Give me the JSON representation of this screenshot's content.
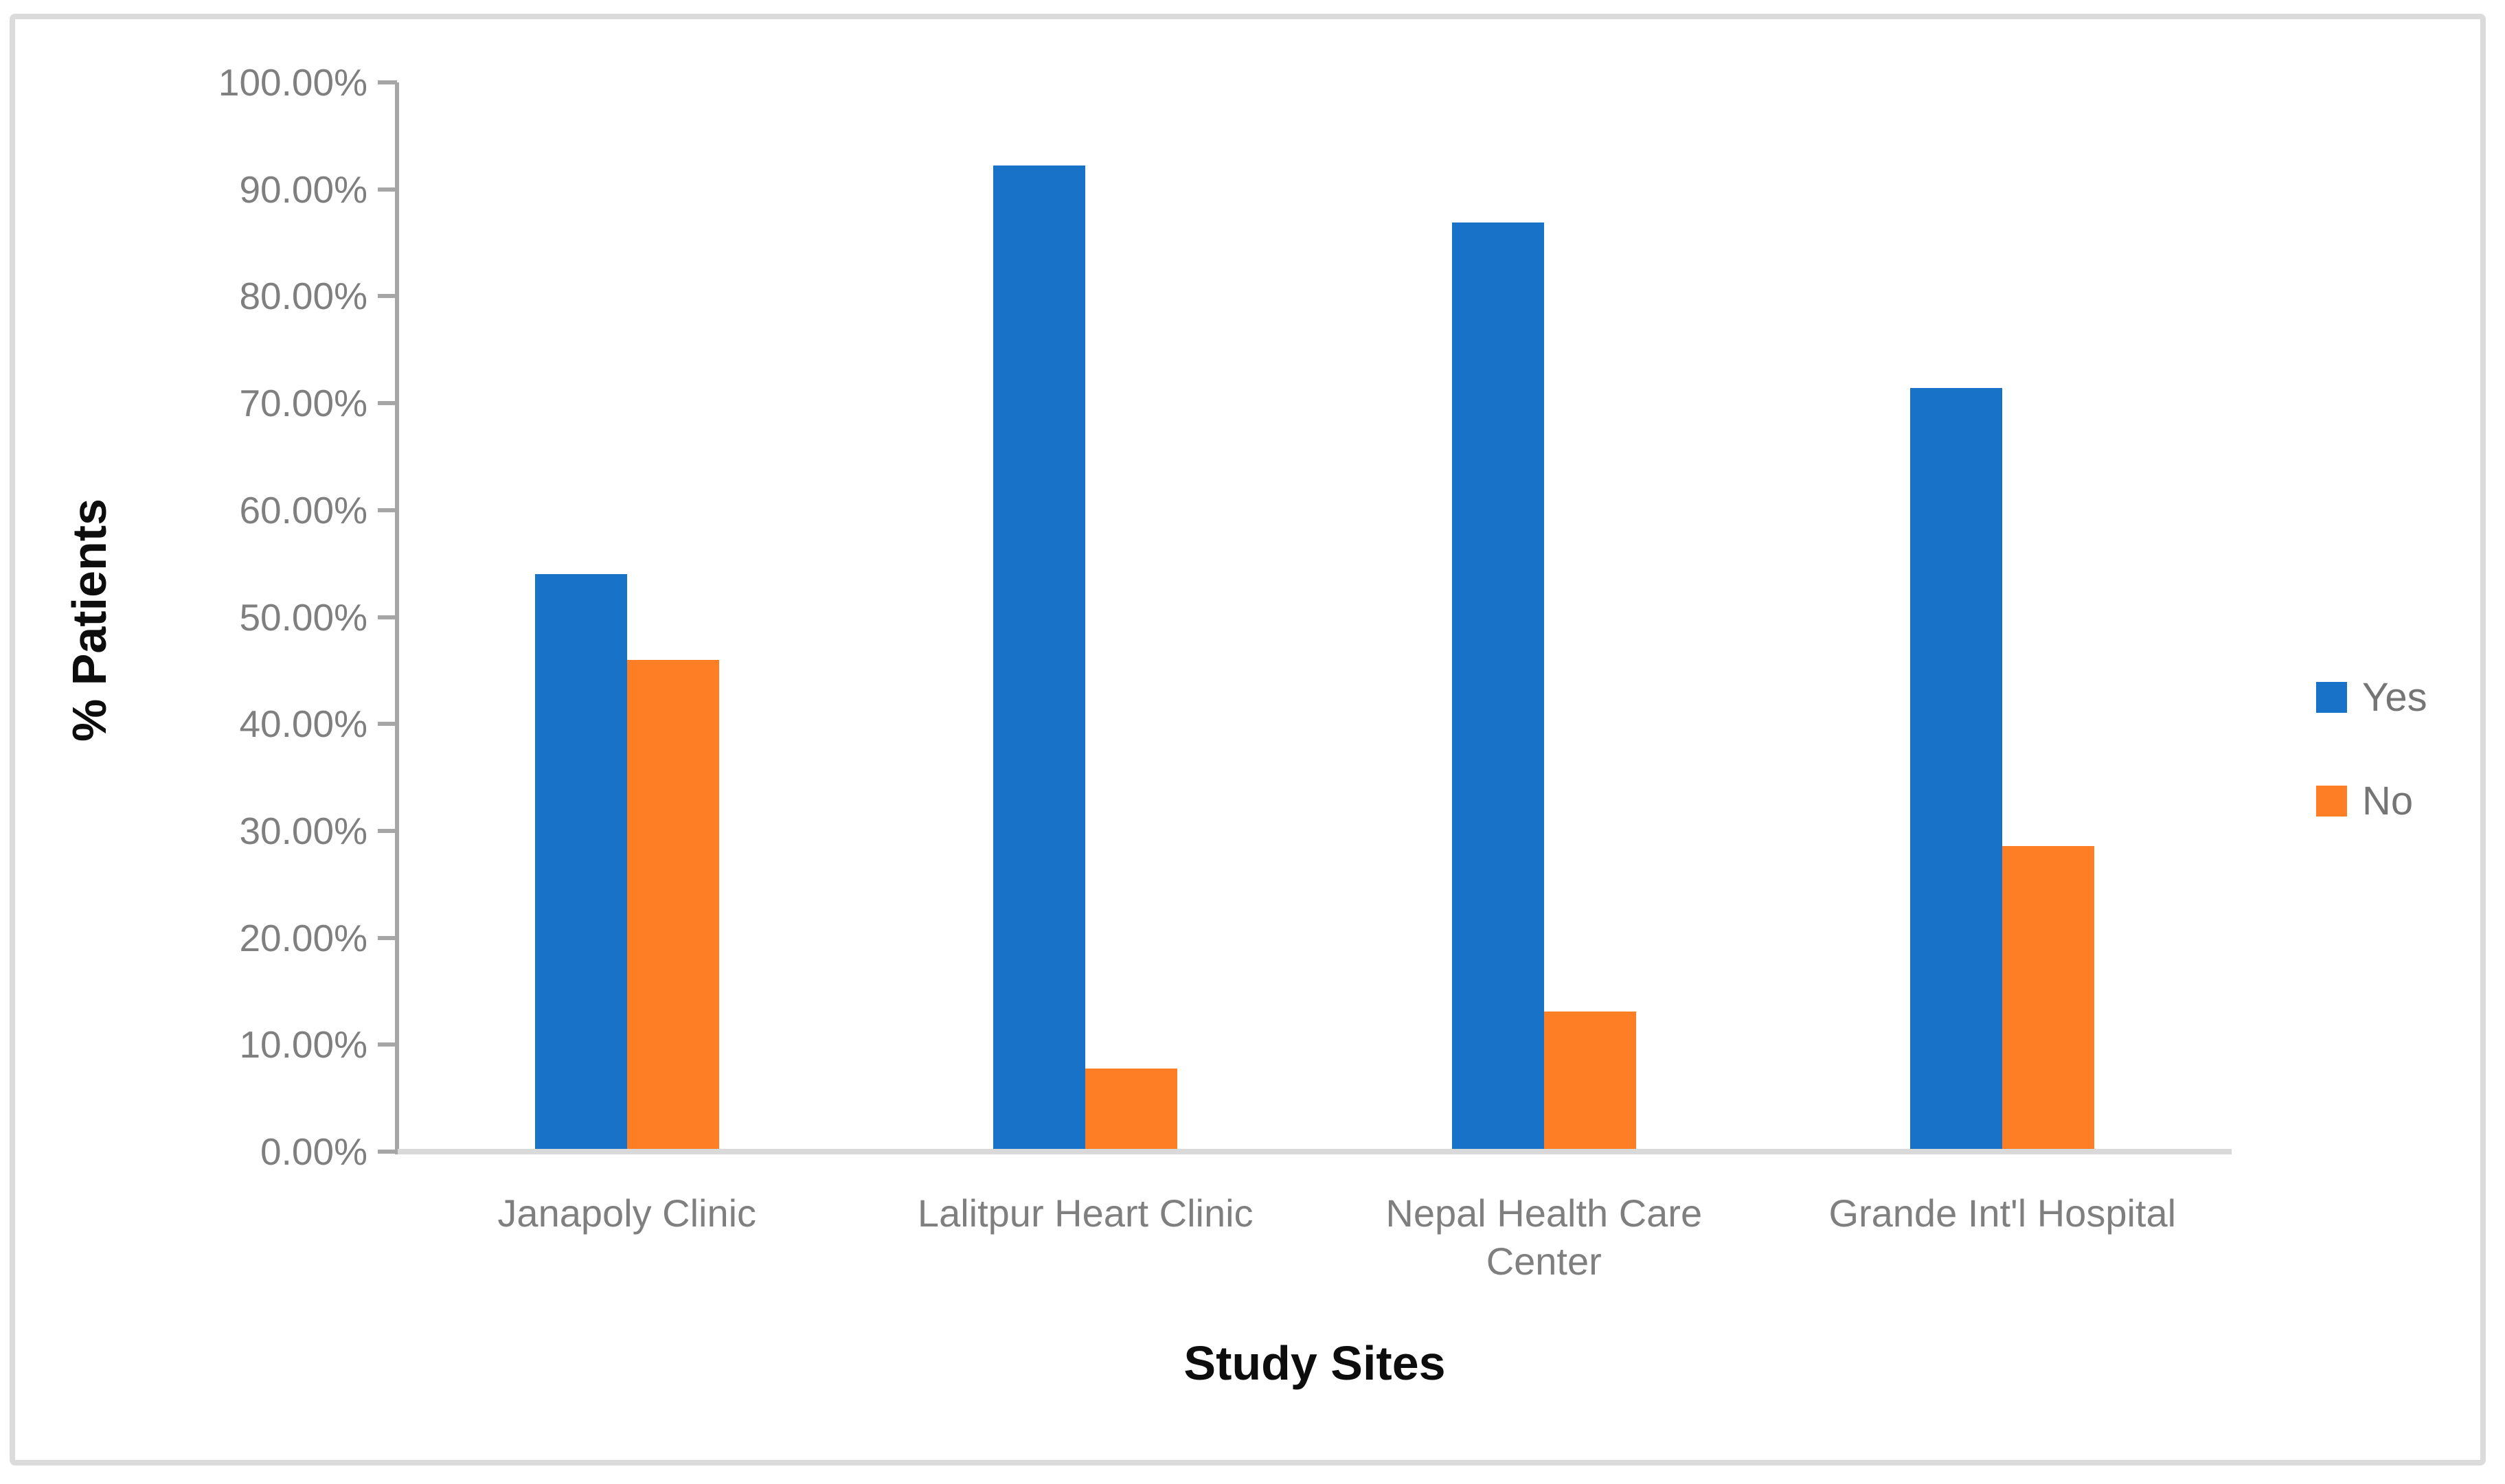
{
  "figure": {
    "background_color": "#ffffff",
    "border_color": "#dbdbdb"
  },
  "axis_style": {
    "axis_line_color": "#a6a6a6",
    "baseline_color": "#d9d9d9",
    "tick_label_color": "#7f7f7f",
    "title_color": "#0d0d0d"
  },
  "legend": {
    "position": "right",
    "items": [
      {
        "label": "Yes",
        "color": "#1873C8"
      },
      {
        "label": "No",
        "color": "#FD7E25"
      }
    ]
  },
  "chart_data": {
    "type": "bar",
    "title": "",
    "categories": [
      "Janapoly Clinic",
      "Lalitpur Heart Clinic",
      "Nepal Health Care Center",
      "Grande Int'l Hospital"
    ],
    "series": [
      {
        "name": "Yes",
        "color": "#1873C8",
        "values": [
          54.0,
          92.2,
          86.9,
          71.4
        ]
      },
      {
        "name": "No",
        "color": "#FD7E25",
        "values": [
          46.0,
          7.8,
          13.1,
          28.6
        ]
      }
    ],
    "xlabel": "Study Sites",
    "ylabel": "% Patients",
    "ylim": [
      0,
      100
    ],
    "ytick_step": 10,
    "ytick_labels": [
      "100.00%",
      "90.00%",
      "80.00%",
      "70.00%",
      "60.00%",
      "50.00%",
      "40.00%",
      "30.00%",
      "20.00%",
      "10.00%",
      "0.00%"
    ],
    "grid": false,
    "legend_position": "right"
  }
}
